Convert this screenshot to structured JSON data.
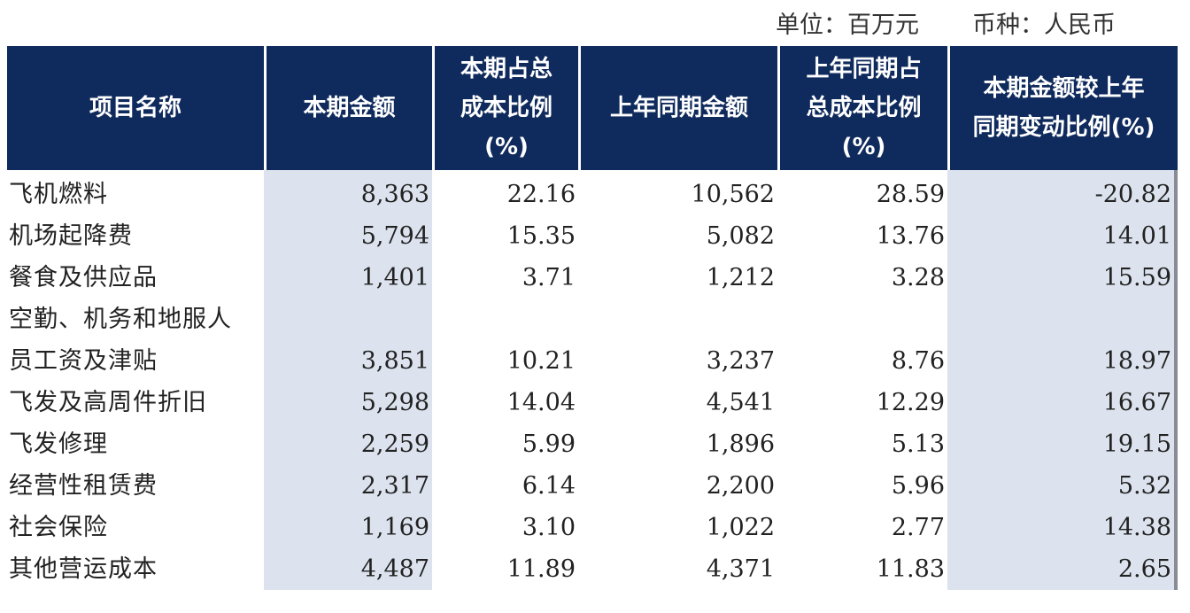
{
  "unit": {
    "unit_label": "单位：百万元",
    "currency_label": "币种：人民币"
  },
  "headers": [
    [
      "项目名称"
    ],
    [
      "本期金额"
    ],
    [
      "本期占总",
      "成本比例",
      "(%)"
    ],
    [
      "上年同期金额"
    ],
    [
      "上年同期占",
      "总成本比例",
      "(%)"
    ],
    [
      "本期金额较上年",
      "同期变动比例(%)"
    ]
  ],
  "rows": [
    {
      "name": "飞机燃料",
      "current": "8,363",
      "current_pct": "22.16",
      "prior": "10,562",
      "prior_pct": "28.59",
      "change_pct": "-20.82"
    },
    {
      "name": "机场起降费",
      "current": "5,794",
      "current_pct": "15.35",
      "prior": "5,082",
      "prior_pct": "13.76",
      "change_pct": "14.01"
    },
    {
      "name": "餐食及供应品",
      "current": "1,401",
      "current_pct": "3.71",
      "prior": "1,212",
      "prior_pct": "3.28",
      "change_pct": "15.59"
    },
    {
      "name": "空勤、机务和地服人",
      "current": "",
      "current_pct": "",
      "prior": "",
      "prior_pct": "",
      "change_pct": ""
    },
    {
      "name": "员工资及津贴",
      "current": "3,851",
      "current_pct": "10.21",
      "prior": "3,237",
      "prior_pct": "8.76",
      "change_pct": "18.97"
    },
    {
      "name": "飞发及高周件折旧",
      "current": "5,298",
      "current_pct": "14.04",
      "prior": "4,541",
      "prior_pct": "12.29",
      "change_pct": "16.67"
    },
    {
      "name": "飞发修理",
      "current": "2,259",
      "current_pct": "5.99",
      "prior": "1,896",
      "prior_pct": "5.13",
      "change_pct": "19.15"
    },
    {
      "name": "经营性租赁费",
      "current": "2,317",
      "current_pct": "6.14",
      "prior": "2,200",
      "prior_pct": "5.96",
      "change_pct": "5.32"
    },
    {
      "name": "社会保险",
      "current": "1,169",
      "current_pct": "3.10",
      "prior": "1,022",
      "prior_pct": "2.77",
      "change_pct": "14.38"
    },
    {
      "name": "其他营运成本",
      "current": "4,487",
      "current_pct": "11.89",
      "prior": "4,371",
      "prior_pct": "11.83",
      "change_pct": "2.65"
    }
  ],
  "colors": {
    "header_bg": "#0f2a5c",
    "shade_bg": "#dce3ee",
    "header_text": "#ffffff"
  }
}
